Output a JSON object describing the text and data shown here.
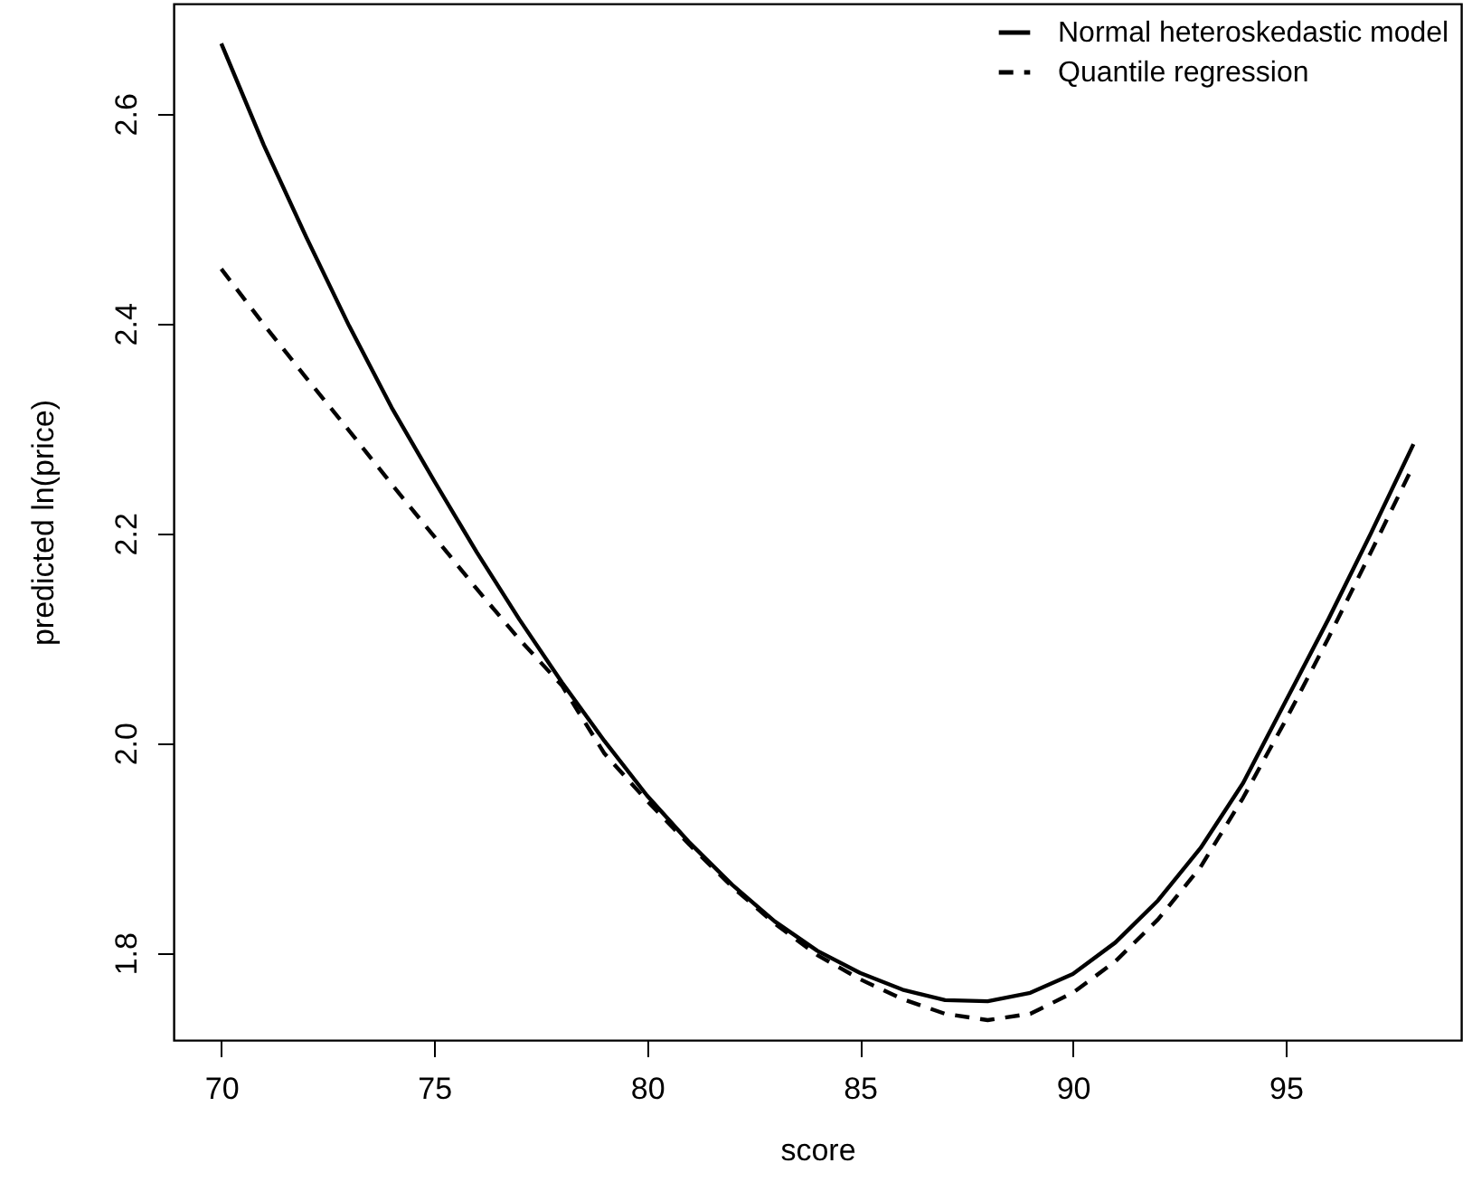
{
  "chart_data": {
    "type": "line",
    "xlabel": "score",
    "ylabel": "predicted ln(price)",
    "x": [
      70,
      71,
      72,
      73,
      74,
      75,
      76,
      77,
      78,
      79,
      80,
      81,
      82,
      83,
      84,
      85,
      86,
      87,
      88,
      89,
      90,
      91,
      92,
      93,
      94,
      95,
      96,
      97,
      98
    ],
    "xlim": [
      68.88,
      99.12
    ],
    "xticks": [
      70,
      75,
      80,
      85,
      90,
      95
    ],
    "ylim": [
      1.717,
      2.705
    ],
    "yticks": [
      {
        "value": 1.8,
        "label": "1.8"
      },
      {
        "value": 2.0,
        "label": "2.0"
      },
      {
        "value": 2.2,
        "label": "2.2"
      },
      {
        "value": 2.4,
        "label": "2.4"
      },
      {
        "value": 2.6,
        "label": "2.6"
      }
    ],
    "grid": false,
    "legend": "top right",
    "marker": "none",
    "series": [
      {
        "name": "Normal heteroskedastic model",
        "color": "#000000",
        "line_style": "solid",
        "values": [
          2.667,
          2.57,
          2.482,
          2.398,
          2.32,
          2.25,
          2.182,
          2.118,
          2.058,
          2.002,
          1.95,
          1.905,
          1.865,
          1.83,
          1.802,
          1.781,
          1.765,
          1.755,
          1.754,
          1.762,
          1.78,
          1.81,
          1.85,
          1.9,
          1.962,
          2.04,
          2.118,
          2.2,
          2.285
        ]
      },
      {
        "name": "Quantile regression",
        "color": "#000000",
        "line_style": "dashed",
        "values": [
          2.452,
          2.399,
          2.348,
          2.298,
          2.247,
          2.197,
          2.147,
          2.099,
          2.055,
          1.99,
          1.945,
          1.903,
          1.863,
          1.828,
          1.798,
          1.775,
          1.756,
          1.742,
          1.736,
          1.742,
          1.762,
          1.792,
          1.832,
          1.882,
          1.948,
          2.022,
          2.1,
          2.182,
          2.265
        ]
      }
    ]
  }
}
